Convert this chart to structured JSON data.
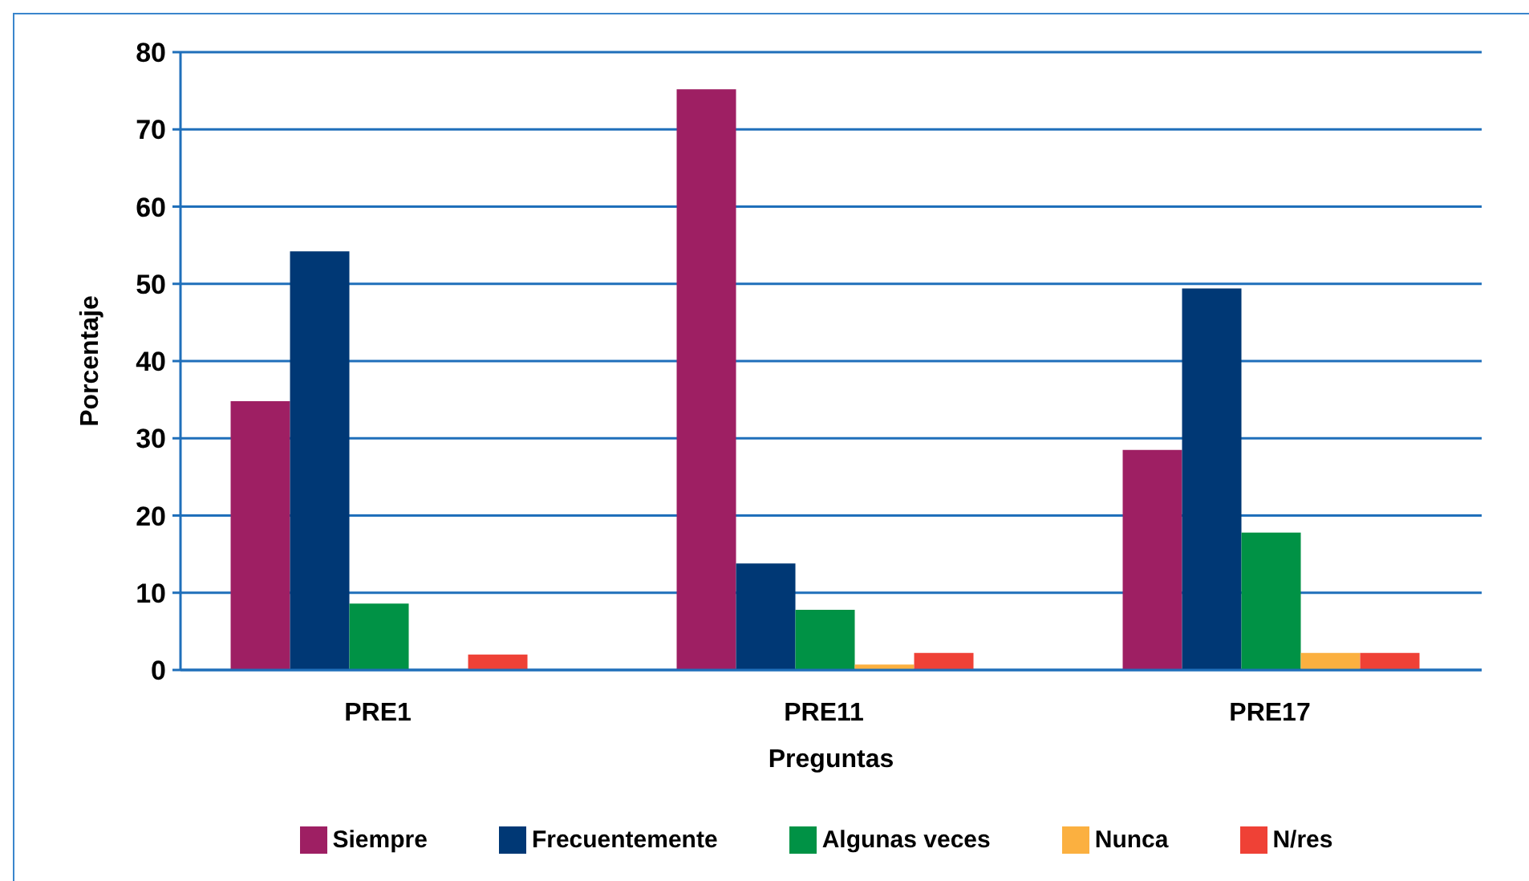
{
  "chart_data": {
    "type": "bar",
    "xlabel": "Preguntas",
    "ylabel": "Porcentaje",
    "categories": [
      "PRE1",
      "PRE11",
      "PRE17"
    ],
    "series": [
      {
        "name": "Siempre",
        "color": "#9e1f63",
        "values": [
          34.8,
          75.2,
          28.5
        ]
      },
      {
        "name": "Frecuentemente",
        "color": "#003875",
        "values": [
          54.2,
          13.8,
          49.4
        ]
      },
      {
        "name": "Algunas veces",
        "color": "#009245",
        "values": [
          8.6,
          7.8,
          17.8
        ]
      },
      {
        "name": "Nunca",
        "color": "#fbb040",
        "values": [
          0,
          0.7,
          2.2
        ]
      },
      {
        "name": "N/res",
        "color": "#ef4136",
        "values": [
          2.0,
          2.2,
          2.2
        ]
      }
    ],
    "ylim": [
      0,
      80
    ],
    "yticks": [
      0,
      10,
      20,
      30,
      40,
      50,
      60,
      70,
      80
    ],
    "grid": "y",
    "legend": "bottom"
  }
}
